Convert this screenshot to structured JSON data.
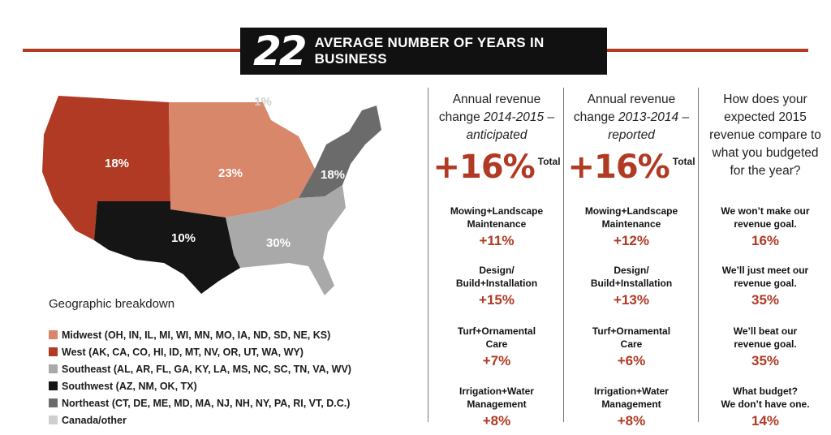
{
  "header": {
    "number": "22",
    "title": "AVERAGE NUMBER OF YEARS IN BUSINESS"
  },
  "colors": {
    "accent": "#b03a24",
    "midwest": "#d9876a",
    "west": "#b03a24",
    "southeast": "#a9a9a9",
    "southwest": "#151515",
    "northeast": "#6b6b6b",
    "canada": "#cfcfcf"
  },
  "chart_data": [
    {
      "type": "map",
      "title": "Geographic breakdown",
      "regions": [
        {
          "name": "Midwest (OH, IN, IL, MI, WI, MN, MO, IA, ND, SD, NE, KS)",
          "value": "23%"
        },
        {
          "name": "West (AK, CA, CO, HI, ID, MT, NV, OR, UT, WA, WY)",
          "value": "18%"
        },
        {
          "name": "Southeast (AL, AR, FL, GA, KY, LA, MS, NC, SC, TN, VA, WV)",
          "value": "30%"
        },
        {
          "name": "Southwest (AZ, NM, OK, TX)",
          "value": "10%"
        },
        {
          "name": "Northeast (CT, DE, ME, MD, MA, NJ, NH, NY, PA, RI, VT, D.C.)",
          "value": "18%"
        },
        {
          "name": "Canada/other",
          "value": "1%"
        }
      ]
    }
  ],
  "columns": [
    {
      "q1": "Annual revenue",
      "q2_plain": "change ",
      "q2_italic": "2014-2015 –",
      "q3_italic": "anticipated",
      "big": "+16%",
      "total": "Total",
      "items": [
        {
          "label1": "Mowing+Landscape",
          "label2": "Maintenance",
          "value": "+11%"
        },
        {
          "label1": "Design/",
          "label2": "Build+Installation",
          "value": "+15%"
        },
        {
          "label1": "Turf+Ornamental",
          "label2": "Care",
          "value": "+7%"
        },
        {
          "label1": "Irrigation+Water",
          "label2": "Management",
          "value": "+8%"
        }
      ]
    },
    {
      "q1": "Annual revenue",
      "q2_plain": "change ",
      "q2_italic": "2013-2014 –",
      "q3_italic": "reported",
      "big": "+16%",
      "total": "Total",
      "items": [
        {
          "label1": "Mowing+Landscape",
          "label2": "Maintenance",
          "value": "+12%"
        },
        {
          "label1": "Design/",
          "label2": "Build+Installation",
          "value": "+13%"
        },
        {
          "label1": "Turf+Ornamental",
          "label2": "Care",
          "value": "+6%"
        },
        {
          "label1": "Irrigation+Water",
          "label2": "Management",
          "value": "+8%"
        }
      ]
    },
    {
      "lines": [
        "How does your",
        "expected 2015",
        "revenue compare to",
        "what you budgeted",
        "for the year?"
      ],
      "items": [
        {
          "label1": "We won’t make our",
          "label2": "revenue goal.",
          "value": "16%"
        },
        {
          "label1": "We’ll just meet our",
          "label2": "revenue goal.",
          "value": "35%"
        },
        {
          "label1": "We’ll beat our",
          "label2": "revenue goal.",
          "value": "35%"
        },
        {
          "label1": "What budget?",
          "label2": "We don’t have one.",
          "value": "14%"
        }
      ]
    }
  ]
}
